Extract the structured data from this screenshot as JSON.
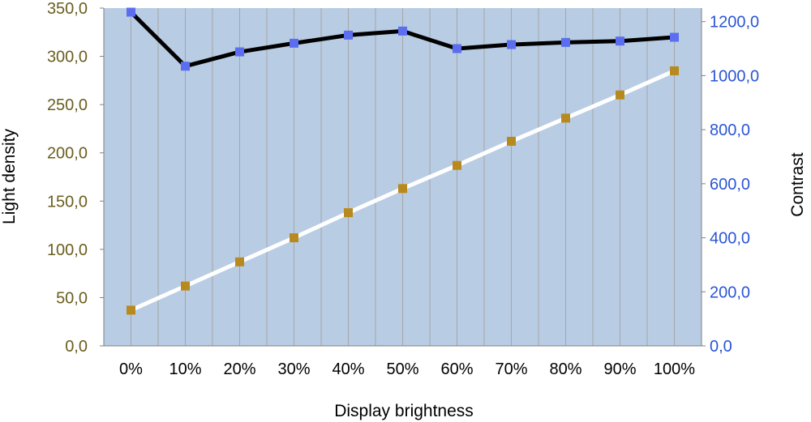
{
  "chart_data": {
    "type": "line",
    "xlabel": "Display brightness",
    "ylabel_left": "Light density",
    "ylabel_right": "Contrast",
    "categories": [
      "0%",
      "10%",
      "20%",
      "30%",
      "40%",
      "50%",
      "60%",
      "70%",
      "80%",
      "90%",
      "100%"
    ],
    "ylim_left": [
      0,
      350
    ],
    "ylim_right": [
      0,
      1250
    ],
    "yticks_left": [
      "0,0",
      "50,0",
      "100,0",
      "150,0",
      "200,0",
      "250,0",
      "300,0",
      "350,0"
    ],
    "yticks_right": [
      "0,0",
      "200,0",
      "400,0",
      "600,0",
      "800,0",
      "1000,0",
      "1200,0"
    ],
    "grid": "vertical",
    "plot_background": "#b8cce4",
    "series": [
      {
        "axis": "right",
        "line_color": "#000000",
        "marker_color": "#5b6ef0",
        "values": [
          1235,
          1035,
          1088,
          1120,
          1150,
          1165,
          1100,
          1115,
          1123,
          1128,
          1142
        ]
      },
      {
        "axis": "left",
        "line_color": "#ffffff",
        "marker_color": "#b88a1e",
        "values": [
          37,
          62,
          87,
          112,
          138,
          163,
          187,
          212,
          236,
          260,
          285
        ]
      }
    ]
  }
}
